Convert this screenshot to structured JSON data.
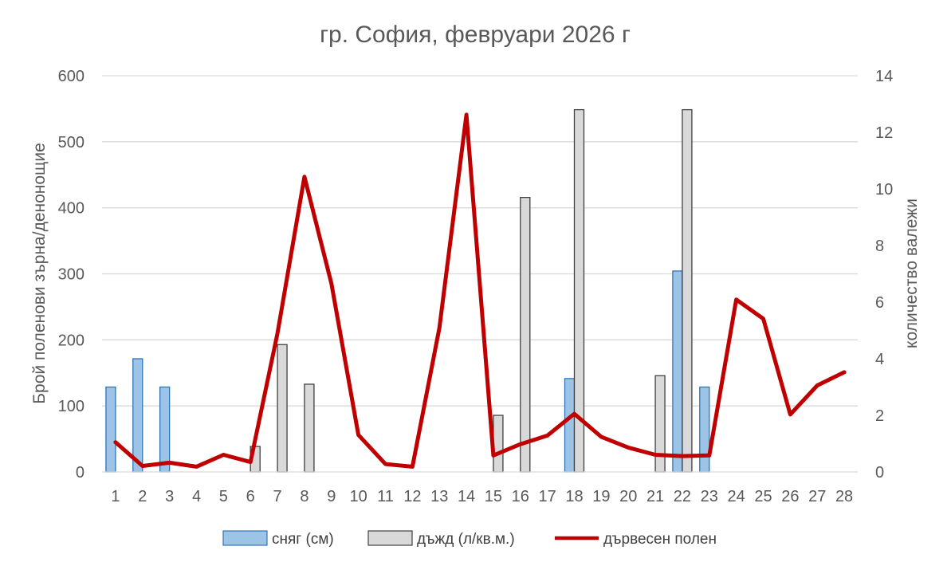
{
  "chart_data": {
    "type": "bar+line",
    "title": "гр. София, февруари 2026 г",
    "categories": [
      "1",
      "2",
      "3",
      "4",
      "5",
      "6",
      "7",
      "8",
      "9",
      "10",
      "11",
      "12",
      "13",
      "14",
      "15",
      "16",
      "17",
      "18",
      "19",
      "20",
      "21",
      "22",
      "23",
      "24",
      "25",
      "26",
      "27",
      "28"
    ],
    "y_left": {
      "label": "Брой поленови зърна/денонощие",
      "lim": [
        0,
        600
      ],
      "ticks": [
        "0",
        "100",
        "200",
        "300",
        "400",
        "500",
        "600"
      ]
    },
    "y_right": {
      "label": "количество валежи",
      "lim": [
        0,
        14
      ],
      "ticks": [
        "0",
        "2",
        "4",
        "6",
        "8",
        "10",
        "12",
        "14"
      ]
    },
    "grid": true,
    "legend_position": "bottom",
    "series": [
      {
        "name": "сняг (см)",
        "type": "bar",
        "axis": "right",
        "color": "#9DC3E6",
        "border": "#2E75B6",
        "values": [
          3,
          4,
          3,
          0,
          0,
          0,
          0,
          0,
          0,
          0,
          0,
          0,
          0,
          0,
          0,
          0,
          0,
          3.3,
          0,
          0,
          0,
          7.1,
          3,
          0,
          0,
          0,
          0,
          0
        ]
      },
      {
        "name": "дъжд (л/кв.м.)",
        "type": "bar",
        "axis": "right",
        "color": "#D9D9D9",
        "border": "#404040",
        "values": [
          0,
          0,
          0,
          0,
          0,
          0.9,
          4.5,
          3.1,
          0,
          0,
          0,
          0,
          0,
          0,
          2,
          9.7,
          0,
          12.8,
          0,
          0,
          3.4,
          12.8,
          0,
          0,
          0,
          0,
          0,
          0
        ]
      },
      {
        "name": "дървесен полен",
        "type": "line",
        "axis": "left",
        "color": "#C00000",
        "values": [
          45,
          9,
          14,
          8,
          26,
          15,
          210,
          447,
          285,
          56,
          12,
          8,
          218,
          541,
          25,
          42,
          55,
          88,
          53,
          37,
          26,
          24,
          25,
          261,
          232,
          87,
          131,
          151
        ]
      }
    ]
  }
}
